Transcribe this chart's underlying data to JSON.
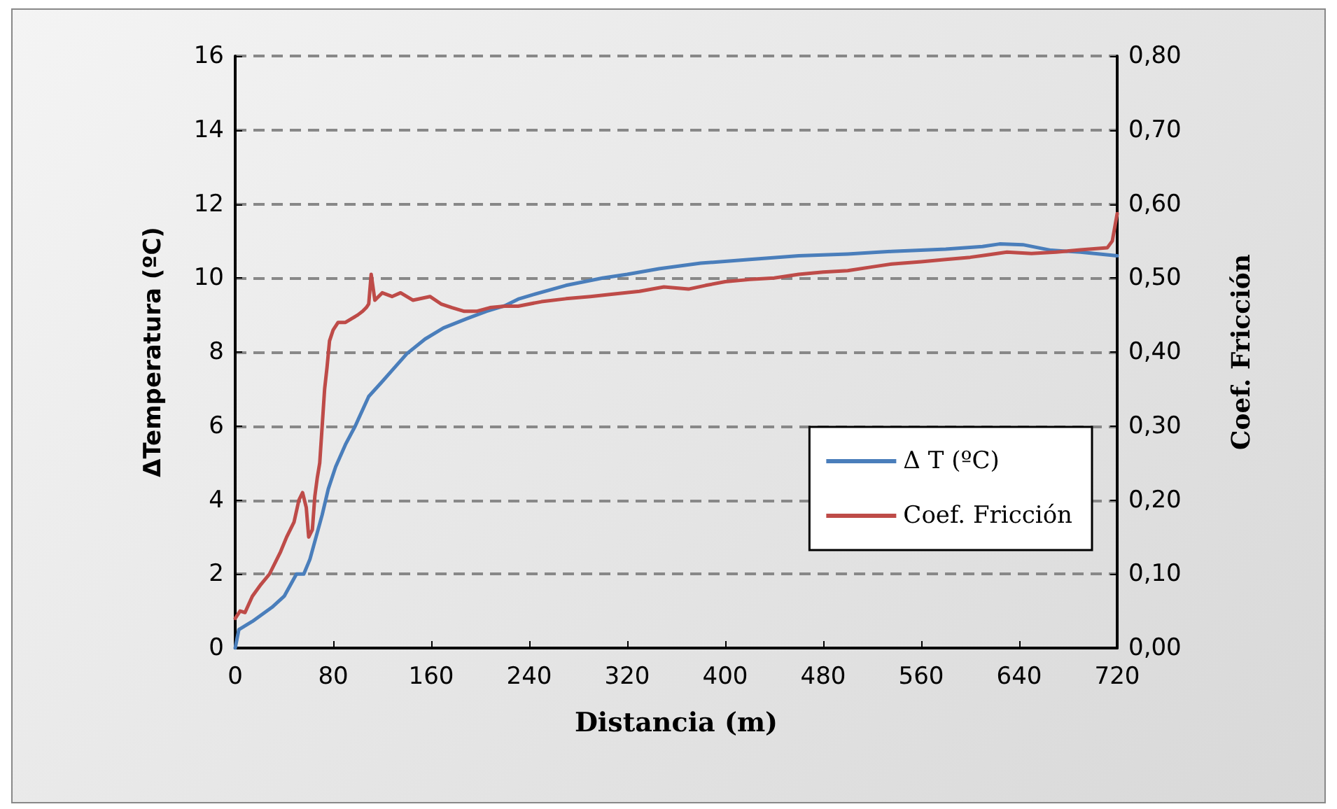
{
  "chart_data": {
    "type": "line",
    "xlabel": "Distancia (m)",
    "ylabel": "ΔTemperatura (ºC)",
    "y2label": "Coef. Fricción",
    "xlim": [
      0,
      720
    ],
    "xticks": [
      0,
      80,
      160,
      240,
      320,
      400,
      480,
      560,
      640,
      720
    ],
    "ylim": [
      0,
      16
    ],
    "yticks": [
      0,
      2,
      4,
      6,
      8,
      10,
      12,
      14,
      16
    ],
    "y2lim": [
      0,
      0.8
    ],
    "y2ticks": [
      {
        "value": 0,
        "label": "0,00"
      },
      {
        "value": 0.1,
        "label": "0,10"
      },
      {
        "value": 0.2,
        "label": "0,20"
      },
      {
        "value": 0.3,
        "label": "0,30"
      },
      {
        "value": 0.4,
        "label": "0,40"
      },
      {
        "value": 0.5,
        "label": "0,50"
      },
      {
        "value": 0.6,
        "label": "0,60"
      },
      {
        "value": 0.7,
        "label": "0,70"
      },
      {
        "value": 0.8,
        "label": "0,80"
      }
    ],
    "grid": "y",
    "legend": "right",
    "marker": "none",
    "line_style": "solid",
    "series": [
      {
        "name": "Δ T (ºC)",
        "color": "#4a7ebb",
        "x": [
          0,
          3,
          14,
          30,
          40,
          50,
          56,
          61,
          66,
          71,
          76,
          82,
          90,
          98,
          109,
          120,
          128,
          140,
          155,
          170,
          189,
          205,
          220,
          231,
          243,
          270,
          300,
          320,
          346,
          380,
          420,
          460,
          500,
          536,
          580,
          610,
          624,
          643,
          666,
          690,
          720
        ],
        "values": [
          0,
          0.5,
          0.72,
          1.1,
          1.4,
          2.0,
          2.0,
          2.4,
          3.0,
          3.6,
          4.3,
          4.9,
          5.5,
          6.0,
          6.8,
          7.2,
          7.5,
          7.95,
          8.35,
          8.65,
          8.9,
          9.1,
          9.25,
          9.43,
          9.55,
          9.8,
          10.0,
          10.1,
          10.25,
          10.4,
          10.5,
          10.6,
          10.65,
          10.72,
          10.78,
          10.85,
          10.92,
          10.9,
          10.75,
          10.7,
          10.6
        ]
      },
      {
        "name": "Coef. Fricción",
        "color": "#be4b48",
        "axis": "y2",
        "x": [
          0,
          4,
          8,
          14,
          21,
          28,
          37,
          42,
          48,
          52,
          55,
          58,
          60,
          63,
          65,
          67,
          69,
          71,
          73,
          75,
          77,
          80,
          84,
          90,
          95,
          100,
          104,
          107,
          109,
          111,
          114,
          120,
          128,
          135,
          145,
          159,
          168,
          177,
          187,
          197,
          208,
          220,
          231,
          250,
          270,
          290,
          307,
          330,
          350,
          370,
          384,
          400,
          420,
          440,
          460,
          480,
          500,
          520,
          536,
          560,
          580,
          600,
          613,
          630,
          650,
          670,
          690,
          712,
          716,
          720
        ],
        "values": [
          0.04,
          0.05,
          0.048,
          0.07,
          0.086,
          0.1,
          0.13,
          0.15,
          0.17,
          0.2,
          0.21,
          0.19,
          0.15,
          0.16,
          0.205,
          0.23,
          0.25,
          0.3,
          0.35,
          0.38,
          0.415,
          0.43,
          0.44,
          0.44,
          0.445,
          0.45,
          0.455,
          0.46,
          0.465,
          0.505,
          0.47,
          0.48,
          0.475,
          0.48,
          0.47,
          0.475,
          0.465,
          0.46,
          0.455,
          0.455,
          0.46,
          0.462,
          0.462,
          0.468,
          0.472,
          0.475,
          0.478,
          0.482,
          0.488,
          0.485,
          0.49,
          0.495,
          0.498,
          0.5,
          0.505,
          0.508,
          0.51,
          0.515,
          0.519,
          0.522,
          0.525,
          0.528,
          0.531,
          0.535,
          0.533,
          0.535,
          0.538,
          0.541,
          0.55,
          0.587
        ]
      }
    ]
  }
}
